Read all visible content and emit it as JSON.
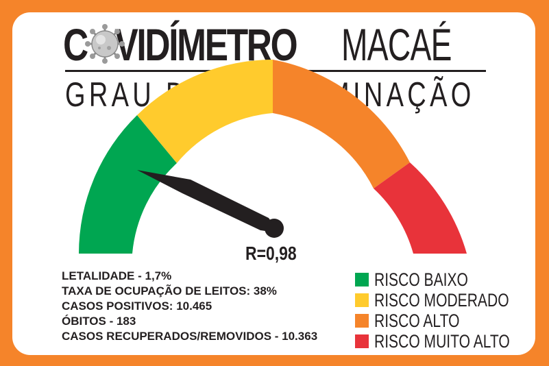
{
  "header": {
    "title_bold_pre": "C",
    "title_bold_post": "VIDÍMETRO",
    "title_light": "MACAÉ",
    "subtitle": "GRAU DE CONTAMINAÇÃO"
  },
  "gauge": {
    "r_label": "R=0,98",
    "needle_level": "low-risk zone"
  },
  "stats": [
    {
      "text": "LETALIDADE - 1,7%"
    },
    {
      "text": "TAXA DE OCUPAÇÃO DE LEITOS: 38%"
    },
    {
      "text": "CASOS POSITIVOS: 10.465"
    },
    {
      "text": "ÓBITOS - 183"
    },
    {
      "text": "CASOS RECUPERADOS/REMOVIDOS - 10.363"
    }
  ],
  "legend": [
    {
      "label": "RISCO BAIXO",
      "color": "#00a651"
    },
    {
      "label": "RISCO MODERADO",
      "color": "#ffcb2d"
    },
    {
      "label": "RISCO ALTO",
      "color": "#f5842a"
    },
    {
      "label": "RISCO MUITO ALTO",
      "color": "#e8333a"
    }
  ],
  "colors": {
    "frame": "#f5842a",
    "ink": "#231f20"
  },
  "icons": {
    "virus": "coronavirus-icon"
  }
}
